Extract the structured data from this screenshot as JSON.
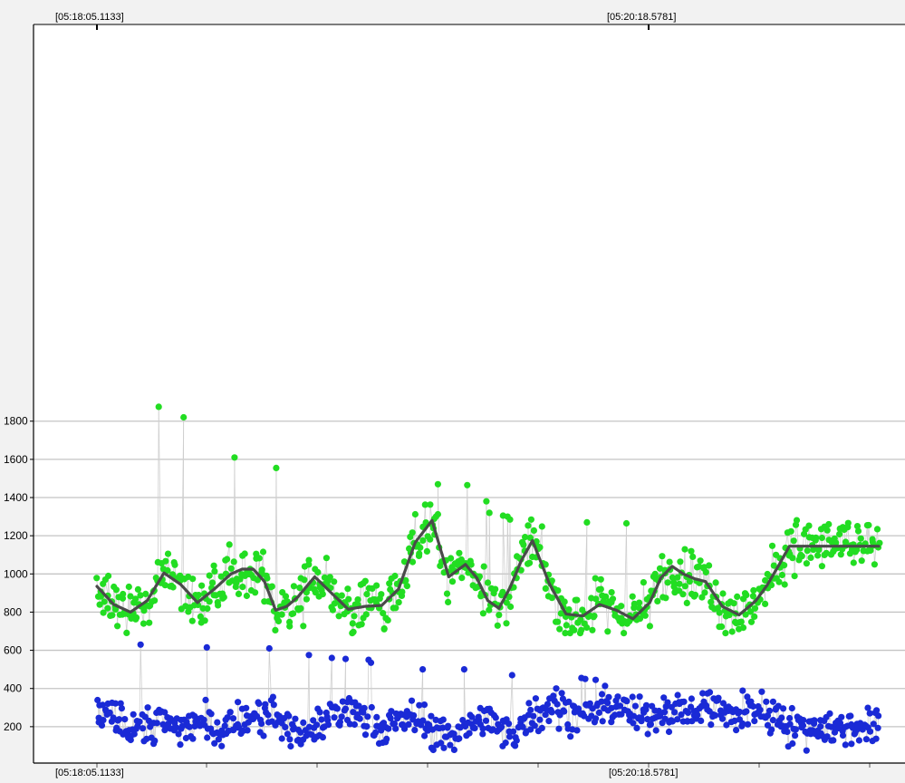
{
  "chart_data": {
    "type": "scatter",
    "title": "",
    "xlabel": "",
    "ylabel": "",
    "x_start_label": "[05:18:05.1133]",
    "x_mid_label": "[05:20:18.5781]",
    "ylim": [
      0,
      1900
    ],
    "yticks": [
      200,
      400,
      600,
      800,
      1000,
      1200,
      1400,
      1600,
      1800
    ],
    "grid": true,
    "series": [
      {
        "kind": "smoothed_line",
        "color": "#4a4a4a",
        "x_index": [
          0,
          15,
          30,
          45,
          60,
          75,
          90,
          105,
          120,
          130,
          140,
          150,
          160,
          170,
          180,
          195,
          210,
          225,
          240,
          255,
          270,
          285,
          300,
          315,
          330,
          340,
          350,
          360,
          370,
          380,
          390,
          405,
          420,
          435,
          450,
          465,
          480,
          495,
          505,
          515,
          525,
          535,
          545,
          560,
          575,
          590,
          600,
          610,
          620,
          630,
          640,
          650,
          660,
          670,
          680,
          690,
          700
        ],
        "values": [
          935,
          840,
          800,
          860,
          1005,
          945,
          850,
          920,
          1000,
          1025,
          1025,
          960,
          810,
          830,
          880,
          985,
          900,
          815,
          830,
          835,
          920,
          1165,
          1280,
          985,
          1050,
          980,
          860,
          820,
          930,
          1070,
          1175,
          950,
          790,
          780,
          840,
          810,
          765,
          850,
          980,
          1040,
          1000,
          975,
          960,
          830,
          785,
          860,
          940,
          1040,
          1145,
          1145,
          1145,
          1145,
          1145,
          1145,
          1145,
          1145,
          1145
        ]
      },
      {
        "kind": "points",
        "color": "#22dd22",
        "band": "upper",
        "anchor_values": [
          935,
          840,
          800,
          860,
          1005,
          945,
          850,
          920,
          1000,
          1025,
          1025,
          960,
          810,
          830,
          880,
          985,
          900,
          815,
          830,
          835,
          920,
          1165,
          1280,
          985,
          1050,
          980,
          860,
          820,
          930,
          1070,
          1175,
          950,
          790,
          780,
          840,
          810,
          765,
          850,
          980,
          1040,
          1000,
          975,
          960,
          830,
          785,
          860,
          940,
          1040,
          1145
        ],
        "peak_values": [
          1875,
          1820,
          1610,
          1555,
          1470,
          1465,
          1380,
          1320,
          1305,
          1300,
          1285,
          1270,
          1265,
          1260,
          1250,
          1230,
          1230,
          1215
        ]
      },
      {
        "kind": "points",
        "color": "#1a2ad6",
        "band": "lower",
        "anchor_values": [
          280,
          250,
          200,
          210,
          230,
          190,
          230,
          170,
          210,
          240,
          260,
          250,
          240,
          200,
          160,
          190,
          250,
          300,
          230,
          200,
          220,
          260,
          180,
          150,
          190,
          230,
          240,
          180,
          150,
          210,
          270,
          310,
          290,
          250,
          280,
          330,
          260,
          240,
          300,
          280,
          290,
          270,
          320,
          270,
          250,
          310,
          260,
          280,
          200
        ],
        "peak_values": [
          630,
          615,
          610,
          575,
          560,
          555,
          550,
          535,
          500,
          500,
          470,
          455,
          450,
          445
        ]
      }
    ]
  }
}
